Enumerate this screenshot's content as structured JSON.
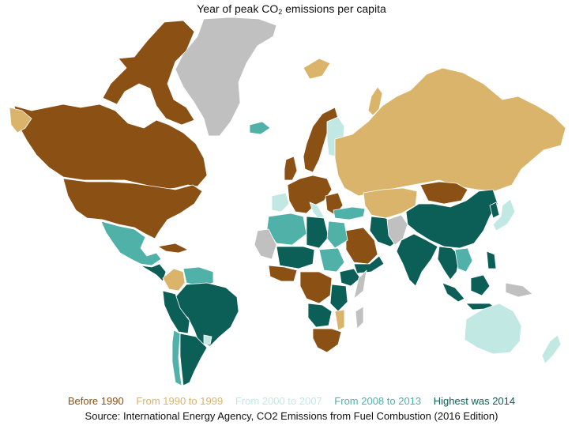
{
  "title": {
    "prefix": "Year of peak CO",
    "subscript": "2",
    "suffix": " emissions per capita"
  },
  "legend": [
    {
      "label": "Before 1990",
      "color": "#8b5013"
    },
    {
      "label": "From 1990 to 1999",
      "color": "#d9b46a"
    },
    {
      "label": "From 2000 to 2007",
      "color": "#c2e8e4"
    },
    {
      "label": "From 2008 to 2013",
      "color": "#4fb1a8"
    },
    {
      "label": "Highest was 2014",
      "color": "#0b5f57"
    }
  ],
  "no_data_color": "#c0c0c0",
  "source": "Source: International Energy Agency, CO2 Emissions from Fuel Combustion (2016 Edition)"
}
